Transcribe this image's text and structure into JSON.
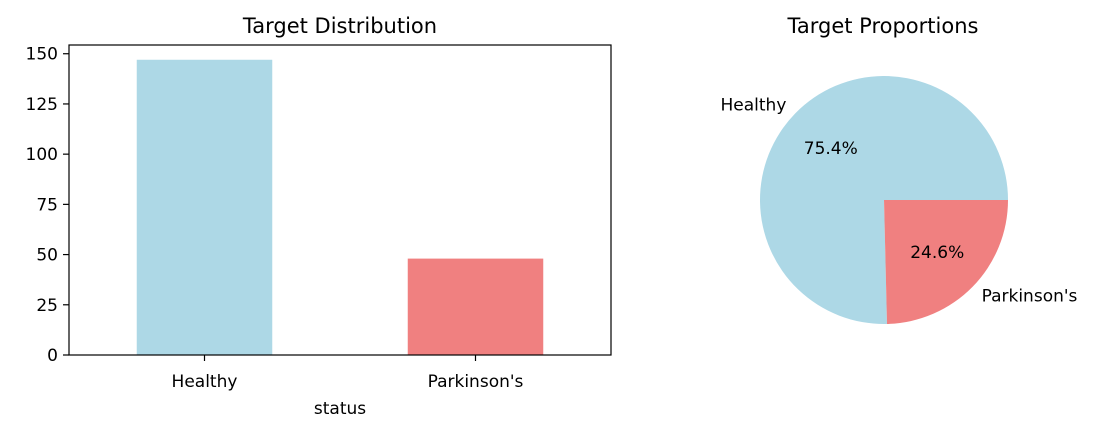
{
  "chart_data": [
    {
      "type": "bar",
      "title": "Target Distribution",
      "xlabel": "status",
      "ylabel": "",
      "categories": [
        "Healthy",
        "Parkinson's"
      ],
      "values": [
        147,
        48
      ],
      "ylim": [
        0,
        154.35
      ],
      "yticks": [
        0,
        25,
        50,
        75,
        100,
        125,
        150
      ],
      "colors": [
        "#add8e6",
        "#f08080"
      ],
      "grid": false,
      "legend": "none"
    },
    {
      "type": "pie",
      "title": "Target Proportions",
      "labels": [
        "Healthy",
        "Parkinson's"
      ],
      "values": [
        147,
        48
      ],
      "percent_labels": [
        "75.4%",
        "24.6%"
      ],
      "colors": [
        "#add8e6",
        "#f08080"
      ],
      "start_angle_deg": 0,
      "legend": "none"
    }
  ]
}
